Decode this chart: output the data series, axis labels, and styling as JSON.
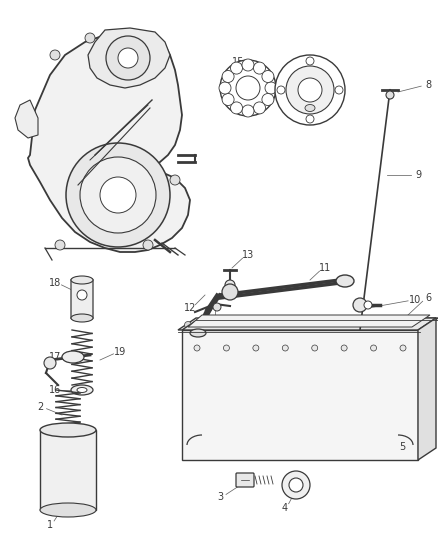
{
  "bg": "#ffffff",
  "lc": "#3a3a3a",
  "tc": "#3a3a3a",
  "fig_w": 4.38,
  "fig_h": 5.33,
  "dpi": 100,
  "label_fs": 7.0
}
